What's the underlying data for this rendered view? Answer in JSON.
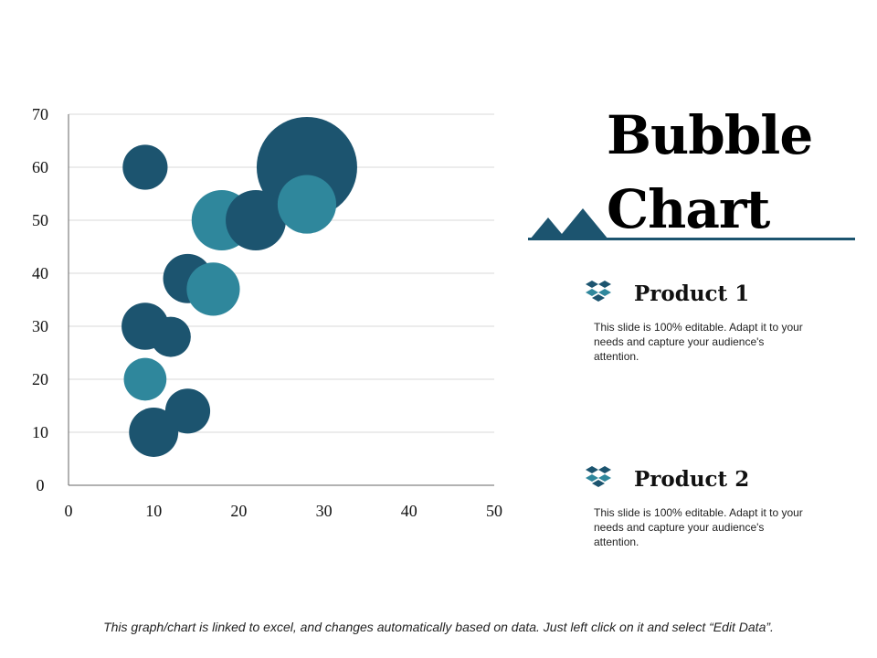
{
  "chart_data": {
    "type": "scatter",
    "title": "Bubble Chart",
    "xlabel": "",
    "ylabel": "",
    "xlim": [
      0,
      50
    ],
    "ylim": [
      0,
      70
    ],
    "xticks": [
      "0",
      "10",
      "20",
      "30",
      "40",
      "50"
    ],
    "yticks": [
      "0",
      "10",
      "20",
      "30",
      "40",
      "50",
      "60",
      "70"
    ],
    "grid": true,
    "series": [
      {
        "name": "Product 1",
        "color": "#1c546f",
        "points": [
          {
            "x": 9,
            "y": 60,
            "size": 10
          },
          {
            "x": 14,
            "y": 39,
            "size": 12
          },
          {
            "x": 9,
            "y": 30,
            "size": 11
          },
          {
            "x": 12,
            "y": 28,
            "size": 8
          },
          {
            "x": 14,
            "y": 14,
            "size": 10
          },
          {
            "x": 10,
            "y": 10,
            "size": 12
          },
          {
            "x": 22,
            "y": 50,
            "size": 18
          },
          {
            "x": 28,
            "y": 60,
            "size": 50
          }
        ]
      },
      {
        "name": "Product 2",
        "color": "#2f879c",
        "points": [
          {
            "x": 18,
            "y": 50,
            "size": 18
          },
          {
            "x": 17,
            "y": 37,
            "size": 14
          },
          {
            "x": 9,
            "y": 20,
            "size": 9
          },
          {
            "x": 28,
            "y": 53,
            "size": 17
          }
        ]
      }
    ]
  },
  "heading": {
    "line1": "Bubble",
    "line2": "Chart"
  },
  "legend": [
    {
      "label": "Product 1",
      "description": "This slide is 100% editable. Adapt it to your needs and capture your audience's attention."
    },
    {
      "label": "Product 2",
      "description": "This slide is 100% editable. Adapt it to your needs and capture your audience's attention."
    }
  ],
  "footer": "This graph/chart is linked to excel, and changes automatically based on data. Just left click on it and select “Edit Data”.",
  "colors": {
    "dark": "#1c546f",
    "light": "#2f879c",
    "grid": "#d9d9d9",
    "axis": "#666666"
  }
}
